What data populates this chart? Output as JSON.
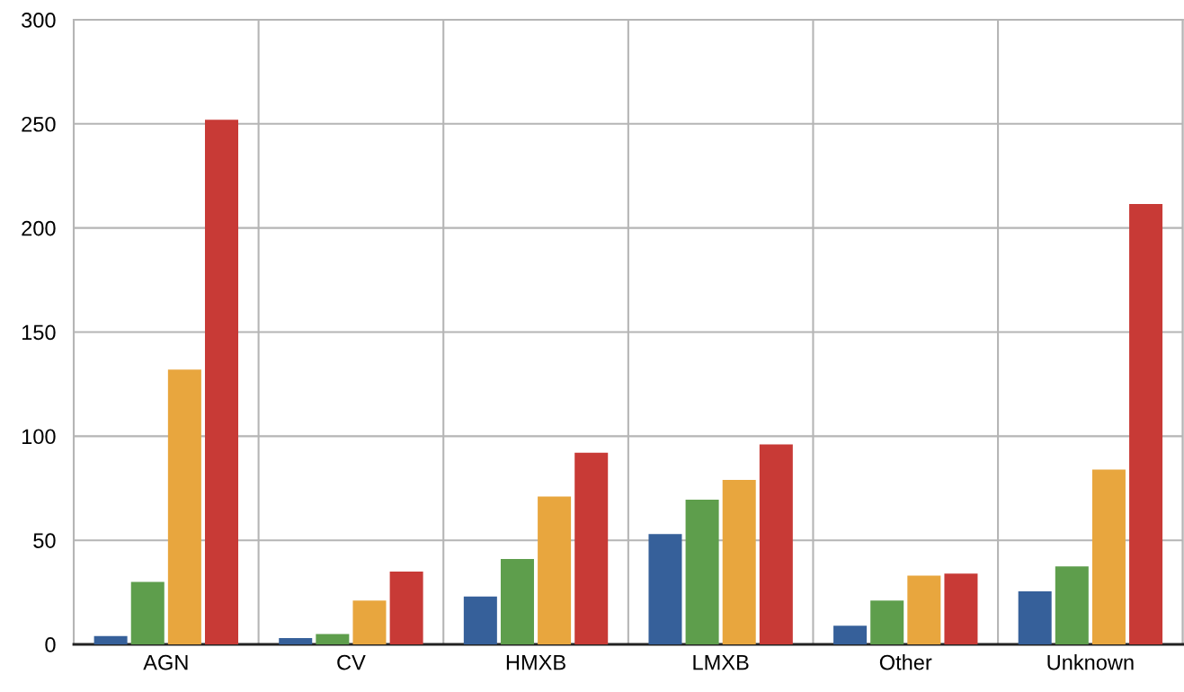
{
  "chart_data": {
    "type": "bar",
    "categories": [
      "AGN",
      "CV",
      "HMXB",
      "LMXB",
      "Other",
      "Unknown"
    ],
    "series": [
      {
        "color": "#36609a",
        "values": [
          4,
          3,
          23,
          53,
          9,
          25.5
        ]
      },
      {
        "color": "#5e9e4c",
        "values": [
          30,
          5,
          41,
          69.5,
          21,
          37.5
        ]
      },
      {
        "color": "#e8a63e",
        "values": [
          132,
          21,
          71,
          79,
          33,
          84
        ]
      },
      {
        "color": "#c83a36",
        "values": [
          252,
          35,
          92,
          96,
          34,
          211.5
        ]
      }
    ],
    "ylim": [
      0,
      300
    ],
    "yticks": [
      0,
      50,
      100,
      150,
      200,
      250,
      300
    ],
    "grid": true,
    "legend": false
  }
}
